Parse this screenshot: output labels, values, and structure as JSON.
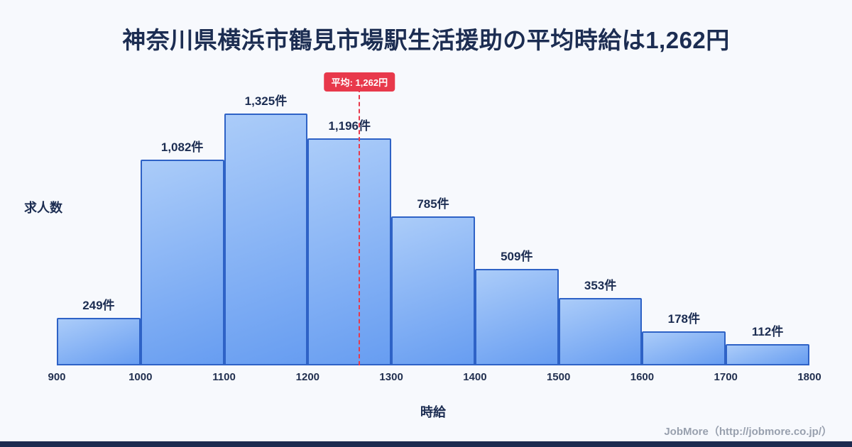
{
  "title": "神奈川県横浜市鶴見市場駅生活援助の平均時給は1,262円",
  "average_badge": "平均: 1,262円",
  "attribution": "JobMore（http://jobmore.co.jp/）",
  "colors": {
    "background": "#f7f9fd",
    "title_text": "#1c2d52",
    "bar_fill_top": "#abccf9",
    "bar_fill_bottom": "#679df1",
    "bar_border": "#2e62c6",
    "average_accent": "#e8394b",
    "footer_bar": "#1d2b4f",
    "attribution_text": "#98a0ae"
  },
  "chart_data": {
    "type": "bar",
    "title": "神奈川県横浜市鶴見市場駅生活援助の平均時給は1,262円",
    "xlabel": "時給",
    "ylabel": "求人数",
    "x_range": [
      900,
      1800
    ],
    "x_ticks": [
      "900",
      "1000",
      "1100",
      "1200",
      "1300",
      "1400",
      "1500",
      "1600",
      "1700",
      "1800"
    ],
    "average": 1262,
    "grid": false,
    "legend": false,
    "bins": [
      {
        "range": [
          900,
          1000
        ],
        "count": 249,
        "label": "249件"
      },
      {
        "range": [
          1000,
          1100
        ],
        "count": 1082,
        "label": "1,082件"
      },
      {
        "range": [
          1100,
          1200
        ],
        "count": 1325,
        "label": "1,325件"
      },
      {
        "range": [
          1200,
          1300
        ],
        "count": 1196,
        "label": "1,196件"
      },
      {
        "range": [
          1300,
          1400
        ],
        "count": 785,
        "label": "785件"
      },
      {
        "range": [
          1400,
          1500
        ],
        "count": 509,
        "label": "509件"
      },
      {
        "range": [
          1500,
          1600
        ],
        "count": 353,
        "label": "353件"
      },
      {
        "range": [
          1600,
          1700
        ],
        "count": 178,
        "label": "178件"
      },
      {
        "range": [
          1700,
          1800
        ],
        "count": 112,
        "label": "112件"
      }
    ]
  }
}
